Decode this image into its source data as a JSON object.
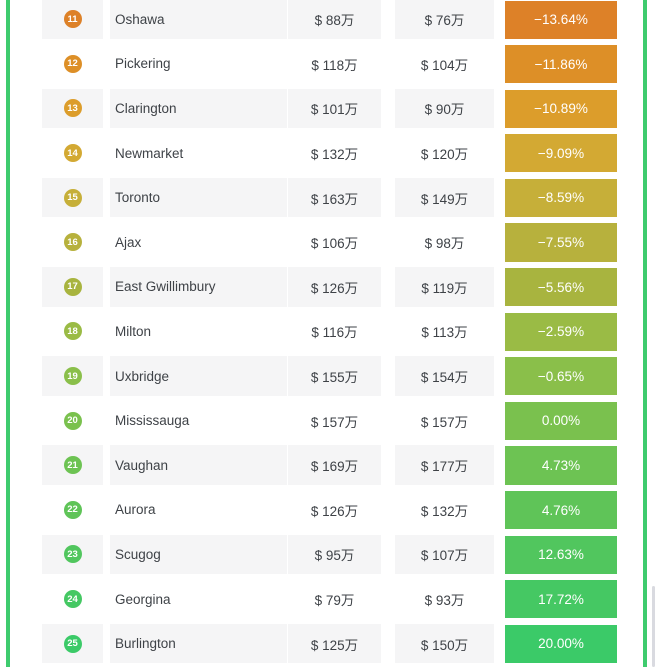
{
  "frame": {
    "border_color": "#3ECB6E",
    "scrollbar_color": "#D9DAE0",
    "stripe_color": "#F5F5F6",
    "text_color": "#3E4247"
  },
  "table": {
    "columns": [
      "rank",
      "city",
      "price_before",
      "price_after",
      "change_percent"
    ],
    "rows": [
      {
        "rank": "11",
        "city": "Oshawa",
        "price_before": "$ 88万",
        "price_after": "$ 76万",
        "change": "−13.64%",
        "color": "#DD8128"
      },
      {
        "rank": "12",
        "city": "Pickering",
        "price_before": "$ 118万",
        "price_after": "$ 104万",
        "change": "−11.86%",
        "color": "#DD8F27"
      },
      {
        "rank": "13",
        "city": "Clarington",
        "price_before": "$ 101万",
        "price_after": "$ 90万",
        "change": "−10.89%",
        "color": "#DC9D2B"
      },
      {
        "rank": "14",
        "city": "Newmarket",
        "price_before": "$ 132万",
        "price_after": "$ 120万",
        "change": "−9.09%",
        "color": "#D3A933"
      },
      {
        "rank": "15",
        "city": "Toronto",
        "price_before": "$ 163万",
        "price_after": "$ 149万",
        "change": "−8.59%",
        "color": "#C6AF39"
      },
      {
        "rank": "16",
        "city": "Ajax",
        "price_before": "$ 106万",
        "price_after": "$ 98万",
        "change": "−7.55%",
        "color": "#B7B13D"
      },
      {
        "rank": "17",
        "city": "East Gwillimbury",
        "price_before": "$ 126万",
        "price_after": "$ 119万",
        "change": "−5.56%",
        "color": "#A8B43F"
      },
      {
        "rank": "18",
        "city": "Milton",
        "price_before": "$ 116万",
        "price_after": "$ 113万",
        "change": "−2.59%",
        "color": "#9ABB45"
      },
      {
        "rank": "19",
        "city": "Uxbridge",
        "price_before": "$ 155万",
        "price_after": "$ 154万",
        "change": "−0.65%",
        "color": "#8ABF4A"
      },
      {
        "rank": "20",
        "city": "Mississauga",
        "price_before": "$ 157万",
        "price_after": "$ 157万",
        "change": "0.00%",
        "color": "#7AC14E"
      },
      {
        "rank": "21",
        "city": "Vaughan",
        "price_before": "$ 169万",
        "price_after": "$ 177万",
        "change": "4.73%",
        "color": "#6DC353"
      },
      {
        "rank": "22",
        "city": "Aurora",
        "price_before": "$ 126万",
        "price_after": "$ 132万",
        "change": "4.76%",
        "color": "#5FC458"
      },
      {
        "rank": "23",
        "city": "Scugog",
        "price_before": "$ 95万",
        "price_after": "$ 107万",
        "change": "12.63%",
        "color": "#51C65E"
      },
      {
        "rank": "24",
        "city": "Georgina",
        "price_before": "$ 79万",
        "price_after": "$ 93万",
        "change": "17.72%",
        "color": "#45C863"
      },
      {
        "rank": "25",
        "city": "Burlington",
        "price_before": "$ 125万",
        "price_after": "$ 150万",
        "change": "20.00%",
        "color": "#3BCA68"
      }
    ]
  }
}
